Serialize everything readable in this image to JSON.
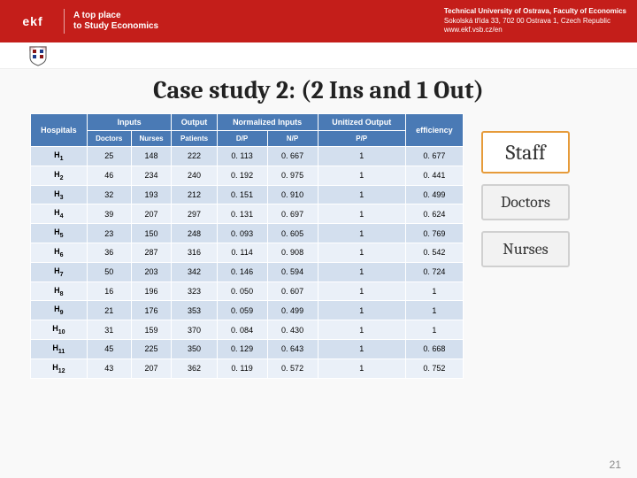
{
  "header": {
    "logo_text": "ekf",
    "tagline_l1": "A top place",
    "tagline_l2": "to Study Economics",
    "uni": "Technical University of Ostrava, Faculty of Economics",
    "addr": "Sokolská třída 33, 702 00 Ostrava 1, Czech Republic",
    "url": "www.ekf.vsb.cz/en"
  },
  "title": "Case study 2: (2 Ins and 1 Out)",
  "table": {
    "group_headers": [
      "Hospitals",
      "Inputs",
      "Output",
      "Normalized Inputs",
      "Unitized Output",
      "efficiency"
    ],
    "sub_headers": [
      "Doctors",
      "Nurses",
      "Patients",
      "D/P",
      "N/P",
      "P/P"
    ],
    "rows": [
      {
        "label": "H",
        "sub": "1",
        "cells": [
          "25",
          "148",
          "222",
          "0. 113",
          "0. 667",
          "1",
          "0. 677"
        ]
      },
      {
        "label": "H",
        "sub": "2",
        "cells": [
          "46",
          "234",
          "240",
          "0. 192",
          "0. 975",
          "1",
          "0. 441"
        ]
      },
      {
        "label": "H",
        "sub": "3",
        "cells": [
          "32",
          "193",
          "212",
          "0. 151",
          "0. 910",
          "1",
          "0. 499"
        ]
      },
      {
        "label": "H",
        "sub": "4",
        "cells": [
          "39",
          "207",
          "297",
          "0. 131",
          "0. 697",
          "1",
          "0. 624"
        ]
      },
      {
        "label": "H",
        "sub": "5",
        "cells": [
          "23",
          "150",
          "248",
          "0. 093",
          "0. 605",
          "1",
          "0. 769"
        ]
      },
      {
        "label": "H",
        "sub": "6",
        "cells": [
          "36",
          "287",
          "316",
          "0. 114",
          "0. 908",
          "1",
          "0. 542"
        ]
      },
      {
        "label": "H",
        "sub": "7",
        "cells": [
          "50",
          "203",
          "342",
          "0. 146",
          "0. 594",
          "1",
          "0. 724"
        ]
      },
      {
        "label": "H",
        "sub": "8",
        "cells": [
          "16",
          "196",
          "323",
          "0. 050",
          "0. 607",
          "1",
          "1"
        ]
      },
      {
        "label": "H",
        "sub": "9",
        "cells": [
          "21",
          "176",
          "353",
          "0. 059",
          "0. 499",
          "1",
          "1"
        ]
      },
      {
        "label": "H",
        "sub": "10",
        "cells": [
          "31",
          "159",
          "370",
          "0. 084",
          "0. 430",
          "1",
          "1"
        ]
      },
      {
        "label": "H",
        "sub": "11",
        "cells": [
          "45",
          "225",
          "350",
          "0. 129",
          "0. 643",
          "1",
          "0. 668"
        ]
      },
      {
        "label": "H",
        "sub": "12",
        "cells": [
          "43",
          "207",
          "362",
          "0. 119",
          "0. 572",
          "1",
          "0. 752"
        ]
      }
    ]
  },
  "side": {
    "staff": "Staff",
    "doctors": "Doctors",
    "nurses": "Nurses"
  },
  "page_number": "21",
  "styling": {
    "header_bg": "#c41e1a",
    "table_header_bg": "#4a7ab5",
    "row_odd_bg": "#d3dfee",
    "row_even_bg": "#eaf0f8",
    "staff_border": "#e69b3a",
    "side_border": "#d0d0d0",
    "title_font": "Cambria",
    "title_size_pt": 28
  }
}
